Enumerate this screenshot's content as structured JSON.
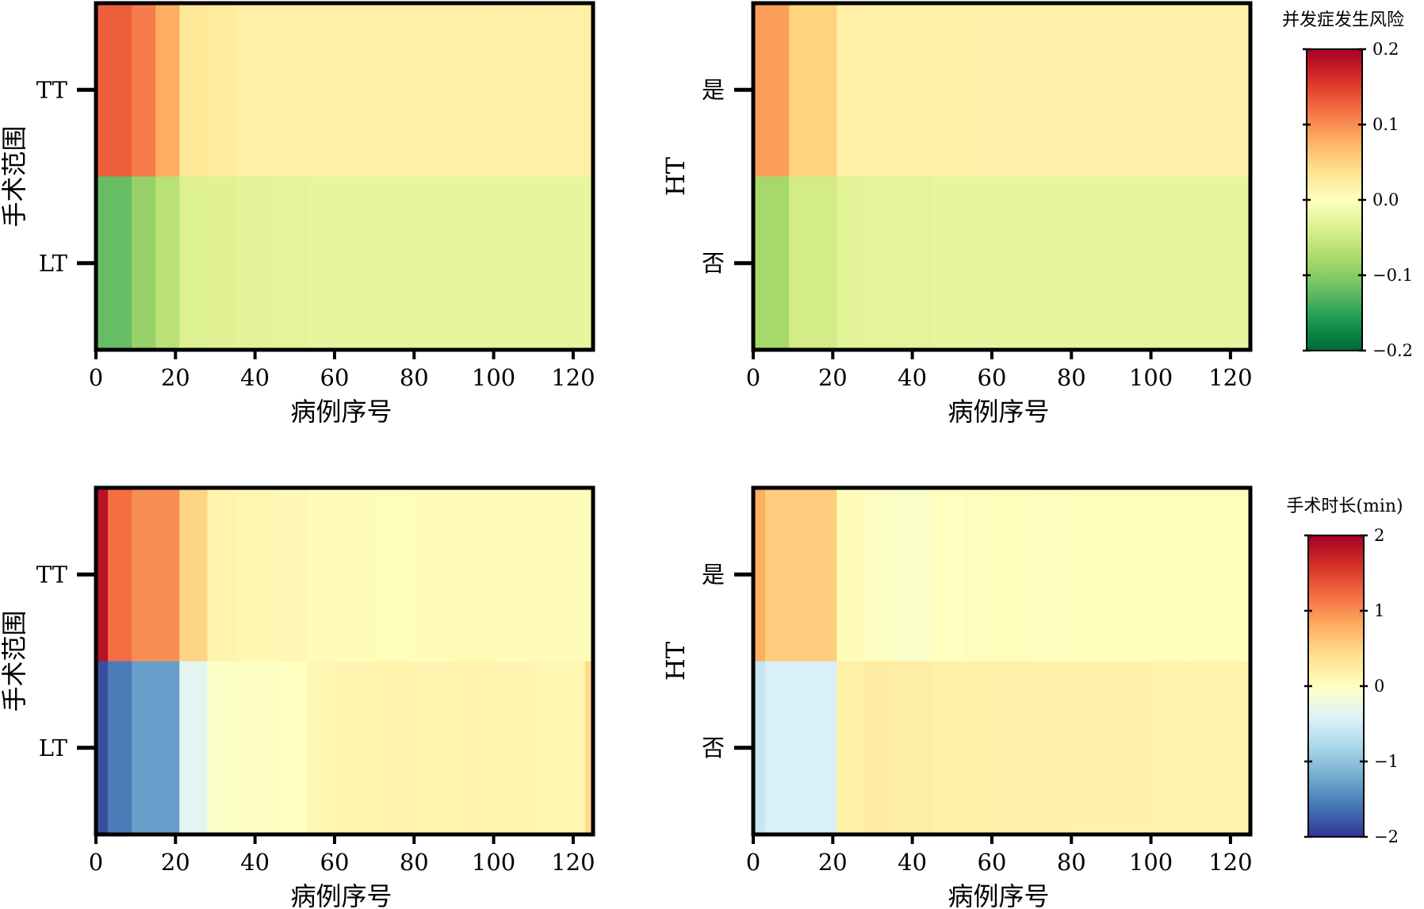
{
  "chart_data": [
    {
      "type": "heatmap",
      "panel": "top-left",
      "xlabel": "病例序号",
      "ylabel": "手术范围",
      "xlim": [
        0,
        125
      ],
      "xticks": [
        0,
        20,
        40,
        60,
        80,
        100,
        120
      ],
      "rows": [
        "TT",
        "LT"
      ],
      "bin_edges": [
        0,
        3,
        9,
        15,
        21,
        28,
        35,
        45,
        53,
        60,
        70,
        80,
        90,
        100,
        110,
        120,
        125
      ],
      "values": [
        [
          0.13,
          0.13,
          0.11,
          0.08,
          0.03,
          0.025,
          0.02,
          0.02,
          0.02,
          0.02,
          0.02,
          0.02,
          0.02,
          0.02,
          0.02,
          0.02
        ],
        [
          -0.12,
          -0.12,
          -0.09,
          -0.065,
          -0.035,
          -0.032,
          -0.03,
          -0.028,
          -0.025,
          -0.025,
          -0.025,
          -0.025,
          -0.025,
          -0.025,
          -0.025,
          -0.025
        ]
      ]
    },
    {
      "type": "heatmap",
      "panel": "top-right",
      "xlabel": "病例序号",
      "ylabel": "HT",
      "xlim": [
        0,
        125
      ],
      "xticks": [
        0,
        20,
        40,
        60,
        80,
        100,
        120
      ],
      "rows": [
        "是",
        "否"
      ],
      "bin_edges": [
        0,
        3,
        9,
        15,
        21,
        28,
        35,
        45,
        53,
        60,
        70,
        80,
        90,
        100,
        110,
        120,
        125
      ],
      "values": [
        [
          0.09,
          0.09,
          0.05,
          0.05,
          0.02,
          0.018,
          0.017,
          0.016,
          0.015,
          0.015,
          0.015,
          0.015,
          0.015,
          0.015,
          0.015,
          0.015
        ],
        [
          -0.08,
          -0.08,
          -0.045,
          -0.045,
          -0.03,
          -0.028,
          -0.027,
          -0.025,
          -0.025,
          -0.025,
          -0.025,
          -0.025,
          -0.025,
          -0.025,
          -0.025,
          -0.025
        ]
      ],
      "colorbar": {
        "title": "并发症发生风险",
        "range": [
          -0.2,
          0.2
        ],
        "ticks": [
          0.2,
          0.1,
          0.0,
          -0.1,
          -0.2
        ],
        "tick_labels": [
          "0.2",
          "0.1",
          "0.0",
          "−0.1",
          "−0.2"
        ]
      }
    },
    {
      "type": "heatmap",
      "panel": "bottom-left",
      "xlabel": "病例序号",
      "ylabel": "手术范围",
      "xlim": [
        0,
        125
      ],
      "xticks": [
        0,
        20,
        40,
        60,
        80,
        100,
        120
      ],
      "rows": [
        "TT",
        "LT"
      ],
      "bin_edges": [
        0,
        3,
        9,
        15,
        21,
        28,
        35,
        45,
        53,
        60,
        70,
        80,
        90,
        100,
        110,
        120,
        123,
        125
      ],
      "values": [
        [
          1.85,
          1.2,
          1.0,
          1.0,
          0.5,
          0.15,
          0.12,
          0.1,
          0.05,
          0.04,
          0.03,
          0.04,
          0.05,
          0.04,
          0.05,
          0.05,
          0.05
        ],
        [
          -1.85,
          -1.55,
          -1.3,
          -1.3,
          -0.35,
          -0.05,
          -0.03,
          0.0,
          0.12,
          0.14,
          0.15,
          0.14,
          0.15,
          0.14,
          0.12,
          0.12,
          0.45
        ]
      ]
    },
    {
      "type": "heatmap",
      "panel": "bottom-right",
      "xlabel": "病例序号",
      "ylabel": "HT",
      "xlim": [
        0,
        125
      ],
      "xticks": [
        0,
        20,
        40,
        60,
        80,
        100,
        120
      ],
      "rows": [
        "是",
        "否"
      ],
      "bin_edges": [
        0,
        3,
        9,
        15,
        21,
        28,
        35,
        45,
        53,
        60,
        70,
        80,
        90,
        100,
        110,
        120,
        125
      ],
      "values": [
        [
          0.8,
          0.55,
          0.55,
          0.55,
          0.05,
          -0.02,
          -0.05,
          0.0,
          0.02,
          0.03,
          0.02,
          0.03,
          0.03,
          0.03,
          0.03,
          0.03
        ],
        [
          -0.6,
          -0.45,
          -0.45,
          -0.45,
          0.2,
          0.25,
          0.22,
          0.2,
          0.2,
          0.18,
          0.17,
          0.16,
          0.16,
          0.15,
          0.15,
          0.15
        ]
      ],
      "colorbar": {
        "title": "手术时长(min)",
        "range": [
          -2,
          2
        ],
        "ticks": [
          2,
          1,
          0,
          -1,
          -2
        ],
        "tick_labels": [
          "2",
          "1",
          "0",
          "−1",
          "−2"
        ]
      }
    }
  ]
}
